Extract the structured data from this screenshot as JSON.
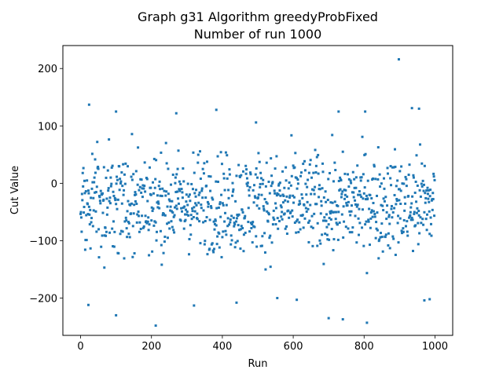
{
  "chart_data": {
    "type": "scatter",
    "title_line1": "Graph g31 Algorithm greedyProbFixed",
    "title_line2": "Number of run 1000",
    "xlabel": "Run",
    "ylabel": "Cut Value",
    "xlim": [
      -50,
      1050
    ],
    "ylim": [
      -265,
      240
    ],
    "xticks": [
      0,
      200,
      400,
      600,
      800,
      1000
    ],
    "xtick_labels": [
      "0",
      "200",
      "400",
      "600",
      "800",
      "1000"
    ],
    "yticks": [
      -200,
      -100,
      0,
      100,
      200
    ],
    "ytick_labels": [
      "−200",
      "−100",
      "0",
      "100",
      "200"
    ],
    "grid": false,
    "marker_color": "#1f77b4",
    "highlight_points": [
      {
        "x": 24,
        "y": 137
      },
      {
        "x": 22,
        "y": -212
      },
      {
        "x": 100,
        "y": 125
      },
      {
        "x": 100,
        "y": -230
      },
      {
        "x": 212,
        "y": -248
      },
      {
        "x": 270,
        "y": 122
      },
      {
        "x": 320,
        "y": -213
      },
      {
        "x": 383,
        "y": 128
      },
      {
        "x": 440,
        "y": -208
      },
      {
        "x": 495,
        "y": 106
      },
      {
        "x": 555,
        "y": -200
      },
      {
        "x": 610,
        "y": -203
      },
      {
        "x": 700,
        "y": -235
      },
      {
        "x": 728,
        "y": 125
      },
      {
        "x": 740,
        "y": -237
      },
      {
        "x": 803,
        "y": 125
      },
      {
        "x": 808,
        "y": -243
      },
      {
        "x": 898,
        "y": 216
      },
      {
        "x": 935,
        "y": 131
      },
      {
        "x": 955,
        "y": 130
      },
      {
        "x": 970,
        "y": -204
      },
      {
        "x": 985,
        "y": -202
      }
    ],
    "series": [
      {
        "x_start": 0,
        "x_end": 999,
        "count": 1000,
        "y_range_typical": [
          -160,
          90
        ],
        "y_center": -30
      }
    ]
  }
}
